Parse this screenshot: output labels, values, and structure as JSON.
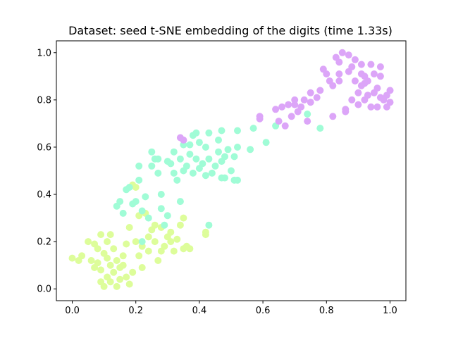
{
  "chart_data": {
    "type": "scatter",
    "title": "Dataset: seed t-SNE embedding of the digits (time 1.33s)",
    "xlabel": "",
    "ylabel": "",
    "xlim": [
      -0.05,
      1.05
    ],
    "ylim": [
      -0.05,
      1.05
    ],
    "xticks": [
      0.0,
      0.2,
      0.4,
      0.6,
      0.8,
      1.0
    ],
    "yticks": [
      0.0,
      0.2,
      0.4,
      0.6,
      0.8,
      1.0
    ],
    "tick_labels_x": [
      "0.0",
      "0.2",
      "0.4",
      "0.6",
      "0.8",
      "1.0"
    ],
    "tick_labels_y": [
      "0.0",
      "0.2",
      "0.4",
      "0.6",
      "0.8",
      "1.0"
    ],
    "grid": false,
    "legend": "none",
    "series": [
      {
        "color": "#ddfd9a",
        "points": [
          [
            0.0,
            0.13
          ],
          [
            0.02,
            0.12
          ],
          [
            0.03,
            0.14
          ],
          [
            0.05,
            0.2
          ],
          [
            0.06,
            0.12
          ],
          [
            0.07,
            0.19
          ],
          [
            0.07,
            0.09
          ],
          [
            0.08,
            0.17
          ],
          [
            0.08,
            0.11
          ],
          [
            0.09,
            0.08
          ],
          [
            0.09,
            0.23
          ],
          [
            0.09,
            0.03
          ],
          [
            0.1,
            0.15
          ],
          [
            0.1,
            0.01
          ],
          [
            0.11,
            0.2
          ],
          [
            0.11,
            0.13
          ],
          [
            0.11,
            0.05
          ],
          [
            0.12,
            0.23
          ],
          [
            0.12,
            0.1
          ],
          [
            0.12,
            0.03
          ],
          [
            0.13,
            0.17
          ],
          [
            0.13,
            0.07
          ],
          [
            0.14,
            0.12
          ],
          [
            0.14,
            0.01
          ],
          [
            0.15,
            0.09
          ],
          [
            0.15,
            0.04
          ],
          [
            0.16,
            0.14
          ],
          [
            0.16,
            0.1
          ],
          [
            0.17,
            0.05
          ],
          [
            0.17,
            0.19
          ],
          [
            0.18,
            0.26
          ],
          [
            0.18,
            0.02
          ],
          [
            0.19,
            0.07
          ],
          [
            0.19,
            0.44
          ],
          [
            0.2,
            0.43
          ],
          [
            0.2,
            0.2
          ],
          [
            0.21,
            0.31
          ],
          [
            0.21,
            0.14
          ],
          [
            0.22,
            0.18
          ],
          [
            0.22,
            0.09
          ],
          [
            0.23,
            0.32
          ],
          [
            0.24,
            0.22
          ],
          [
            0.24,
            0.16
          ],
          [
            0.25,
            0.25
          ],
          [
            0.26,
            0.27
          ],
          [
            0.26,
            0.2
          ],
          [
            0.27,
            0.12
          ],
          [
            0.28,
            0.26
          ],
          [
            0.28,
            0.16
          ],
          [
            0.29,
            0.18
          ],
          [
            0.3,
            0.22
          ],
          [
            0.31,
            0.24
          ],
          [
            0.31,
            0.2
          ],
          [
            0.32,
            0.16
          ],
          [
            0.33,
            0.21
          ],
          [
            0.34,
            0.27
          ],
          [
            0.35,
            0.3
          ],
          [
            0.35,
            0.17
          ],
          [
            0.36,
            0.18
          ],
          [
            0.37,
            0.17
          ],
          [
            0.42,
            0.23
          ],
          [
            0.42,
            0.24
          ]
        ]
      },
      {
        "color": "#a0fcd6",
        "points": [
          [
            0.14,
            0.35
          ],
          [
            0.15,
            0.37
          ],
          [
            0.16,
            0.32
          ],
          [
            0.17,
            0.42
          ],
          [
            0.18,
            0.43
          ],
          [
            0.19,
            0.36
          ],
          [
            0.2,
            0.37
          ],
          [
            0.21,
            0.46
          ],
          [
            0.21,
            0.52
          ],
          [
            0.22,
            0.2
          ],
          [
            0.22,
            0.33
          ],
          [
            0.23,
            0.39
          ],
          [
            0.24,
            0.3
          ],
          [
            0.25,
            0.52
          ],
          [
            0.25,
            0.58
          ],
          [
            0.26,
            0.55
          ],
          [
            0.27,
            0.49
          ],
          [
            0.27,
            0.55
          ],
          [
            0.28,
            0.4
          ],
          [
            0.28,
            0.34
          ],
          [
            0.29,
            0.27
          ],
          [
            0.3,
            0.54
          ],
          [
            0.3,
            0.31
          ],
          [
            0.31,
            0.53
          ],
          [
            0.32,
            0.49
          ],
          [
            0.32,
            0.58
          ],
          [
            0.33,
            0.46
          ],
          [
            0.34,
            0.37
          ],
          [
            0.34,
            0.55
          ],
          [
            0.35,
            0.61
          ],
          [
            0.35,
            0.5
          ],
          [
            0.36,
            0.52
          ],
          [
            0.37,
            0.61
          ],
          [
            0.37,
            0.57
          ],
          [
            0.38,
            0.65
          ],
          [
            0.38,
            0.49
          ],
          [
            0.39,
            0.55
          ],
          [
            0.39,
            0.66
          ],
          [
            0.4,
            0.51
          ],
          [
            0.4,
            0.62
          ],
          [
            0.41,
            0.53
          ],
          [
            0.42,
            0.6
          ],
          [
            0.42,
            0.48
          ],
          [
            0.43,
            0.55
          ],
          [
            0.43,
            0.66
          ],
          [
            0.44,
            0.49
          ],
          [
            0.45,
            0.52
          ],
          [
            0.46,
            0.63
          ],
          [
            0.46,
            0.58
          ],
          [
            0.47,
            0.54
          ],
          [
            0.47,
            0.67
          ],
          [
            0.48,
            0.47
          ],
          [
            0.48,
            0.56
          ],
          [
            0.49,
            0.59
          ],
          [
            0.5,
            0.5
          ],
          [
            0.51,
            0.46
          ],
          [
            0.51,
            0.56
          ],
          [
            0.52,
            0.6
          ],
          [
            0.52,
            0.67
          ],
          [
            0.56,
            0.59
          ],
          [
            0.57,
            0.68
          ],
          [
            0.61,
            0.62
          ],
          [
            0.64,
            0.69
          ],
          [
            0.74,
            0.74
          ],
          [
            0.78,
            0.68
          ],
          [
            0.43,
            0.27
          ],
          [
            0.47,
            0.47
          ],
          [
            0.52,
            0.46
          ]
        ]
      },
      {
        "color": "#dca5f8",
        "points": [
          [
            0.34,
            0.64
          ],
          [
            0.35,
            0.63
          ],
          [
            0.59,
            0.72
          ],
          [
            0.59,
            0.73
          ],
          [
            0.64,
            0.76
          ],
          [
            0.65,
            0.71
          ],
          [
            0.66,
            0.77
          ],
          [
            0.67,
            0.69
          ],
          [
            0.68,
            0.78
          ],
          [
            0.69,
            0.73
          ],
          [
            0.7,
            0.8
          ],
          [
            0.71,
            0.75
          ],
          [
            0.72,
            0.77
          ],
          [
            0.73,
            0.8
          ],
          [
            0.74,
            0.71
          ],
          [
            0.75,
            0.83
          ],
          [
            0.75,
            0.79
          ],
          [
            0.77,
            0.81
          ],
          [
            0.79,
            0.93
          ],
          [
            0.8,
            0.91
          ],
          [
            0.81,
            0.88
          ],
          [
            0.82,
            0.86
          ],
          [
            0.82,
            0.73
          ],
          [
            0.83,
            0.98
          ],
          [
            0.84,
            0.91
          ],
          [
            0.84,
            0.96
          ],
          [
            0.85,
            1.0
          ],
          [
            0.86,
            0.75
          ],
          [
            0.86,
            0.76
          ],
          [
            0.87,
            0.92
          ],
          [
            0.87,
            0.99
          ],
          [
            0.88,
            0.94
          ],
          [
            0.88,
            0.8
          ],
          [
            0.89,
            0.88
          ],
          [
            0.89,
            0.97
          ],
          [
            0.9,
            0.83
          ],
          [
            0.9,
            0.78
          ],
          [
            0.91,
            0.91
          ],
          [
            0.91,
            0.95
          ],
          [
            0.91,
            0.86
          ],
          [
            0.92,
            0.9
          ],
          [
            0.92,
            0.8
          ],
          [
            0.93,
            0.82
          ],
          [
            0.93,
            0.88
          ],
          [
            0.94,
            0.77
          ],
          [
            0.94,
            0.95
          ],
          [
            0.95,
            0.83
          ],
          [
            0.95,
            0.91
          ],
          [
            0.96,
            0.85
          ],
          [
            0.96,
            0.77
          ],
          [
            0.97,
            0.81
          ],
          [
            0.97,
            0.94
          ],
          [
            0.97,
            0.9
          ],
          [
            0.98,
            0.8
          ],
          [
            0.99,
            0.82
          ],
          [
            0.99,
            0.77
          ],
          [
            1.0,
            0.84
          ],
          [
            1.0,
            0.79
          ],
          [
            0.92,
            0.87
          ],
          [
            0.84,
            0.88
          ],
          [
            0.78,
            0.84
          ],
          [
            0.7,
            0.78
          ]
        ]
      }
    ]
  }
}
